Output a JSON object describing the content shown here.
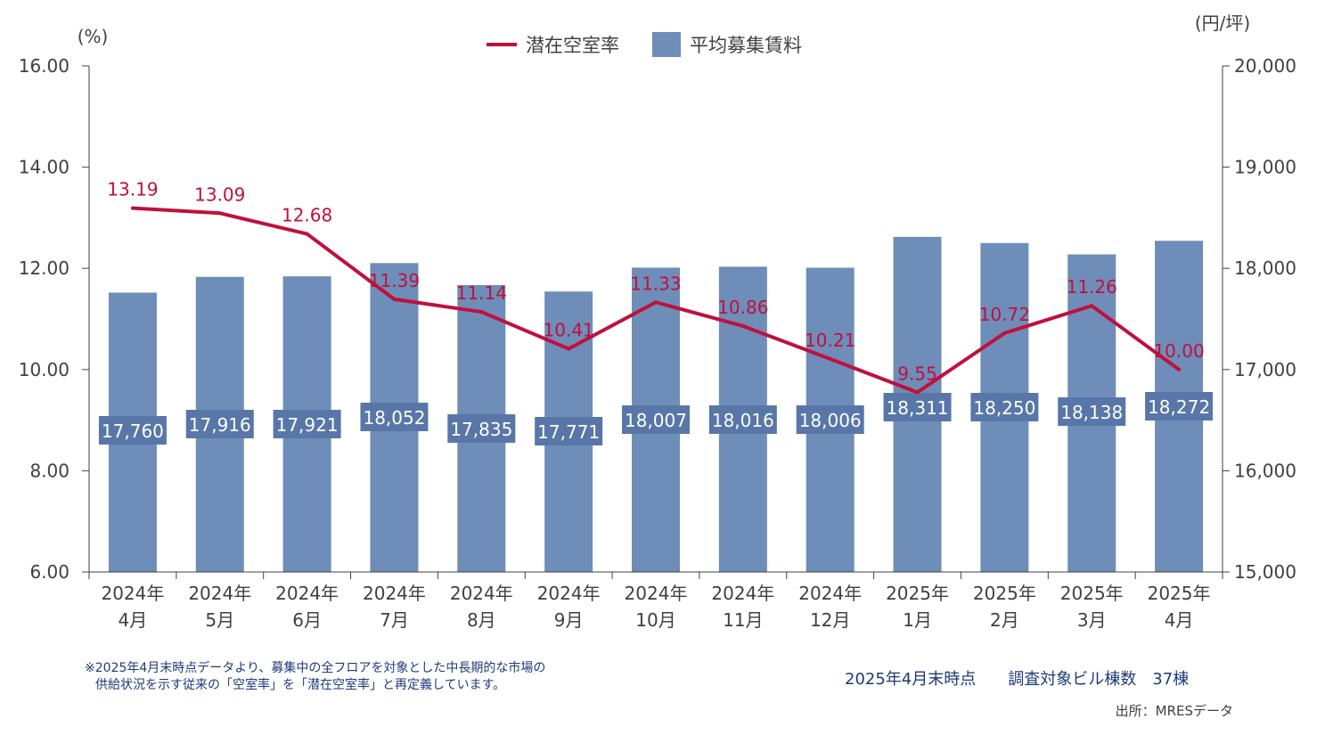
{
  "chart_data": {
    "type": "bar",
    "categories": [
      "2024年\n4月",
      "2024年\n5月",
      "2024年\n6月",
      "2024年\n7月",
      "2024年\n8月",
      "2024年\n9月",
      "2024年\n10月",
      "2024年\n11月",
      "2024年\n12月",
      "2025年\n1月",
      "2025年\n2月",
      "2025年\n3月",
      "2025年\n4月"
    ],
    "series": [
      {
        "name": "潜在空室率",
        "type": "line",
        "axis": "left",
        "color": "#c0103c",
        "values": [
          13.19,
          13.09,
          12.68,
          11.39,
          11.14,
          10.41,
          11.33,
          10.86,
          10.21,
          9.55,
          10.72,
          11.26,
          10.0
        ],
        "labels": [
          "13.19",
          "13.09",
          "12.68",
          "11.39",
          "11.14",
          "10.41",
          "11.33",
          "10.86",
          "10.21",
          "9.55",
          "10.72",
          "11.26",
          "10.00"
        ]
      },
      {
        "name": "平均募集賃料",
        "type": "bar",
        "axis": "right",
        "color": "#6e8db9",
        "values": [
          17760,
          17916,
          17921,
          18052,
          17835,
          17771,
          18007,
          18016,
          18006,
          18311,
          18250,
          18138,
          18272
        ],
        "labels": [
          "17,760",
          "17,916",
          "17,921",
          "18,052",
          "17,835",
          "17,771",
          "18,007",
          "18,016",
          "18,006",
          "18,311",
          "18,250",
          "18,138",
          "18,272"
        ]
      }
    ],
    "y_left": {
      "unit": "(%)",
      "ylim": [
        6,
        16
      ],
      "ticks": [
        "6.00",
        "8.00",
        "10.00",
        "12.00",
        "14.00",
        "16.00"
      ]
    },
    "y_right": {
      "unit": "(円/坪)",
      "ylim": [
        15000,
        20000
      ],
      "ticks": [
        "15,000",
        "16,000",
        "17,000",
        "18,000",
        "19,000",
        "20,000"
      ]
    },
    "legend_position": "top-center",
    "grid": false
  },
  "footnote": {
    "line1": "※2025年4月末時点データより、募集中の全フロアを対象とした中長期的な市場の",
    "line2": "供給状況を示す従来の「空室率」を「潜在空室率」と再定義しています。"
  },
  "survey_info": "2025年4月末時点　　調査対象ビル棟数　37棟",
  "source": "出所：MRESデータ"
}
